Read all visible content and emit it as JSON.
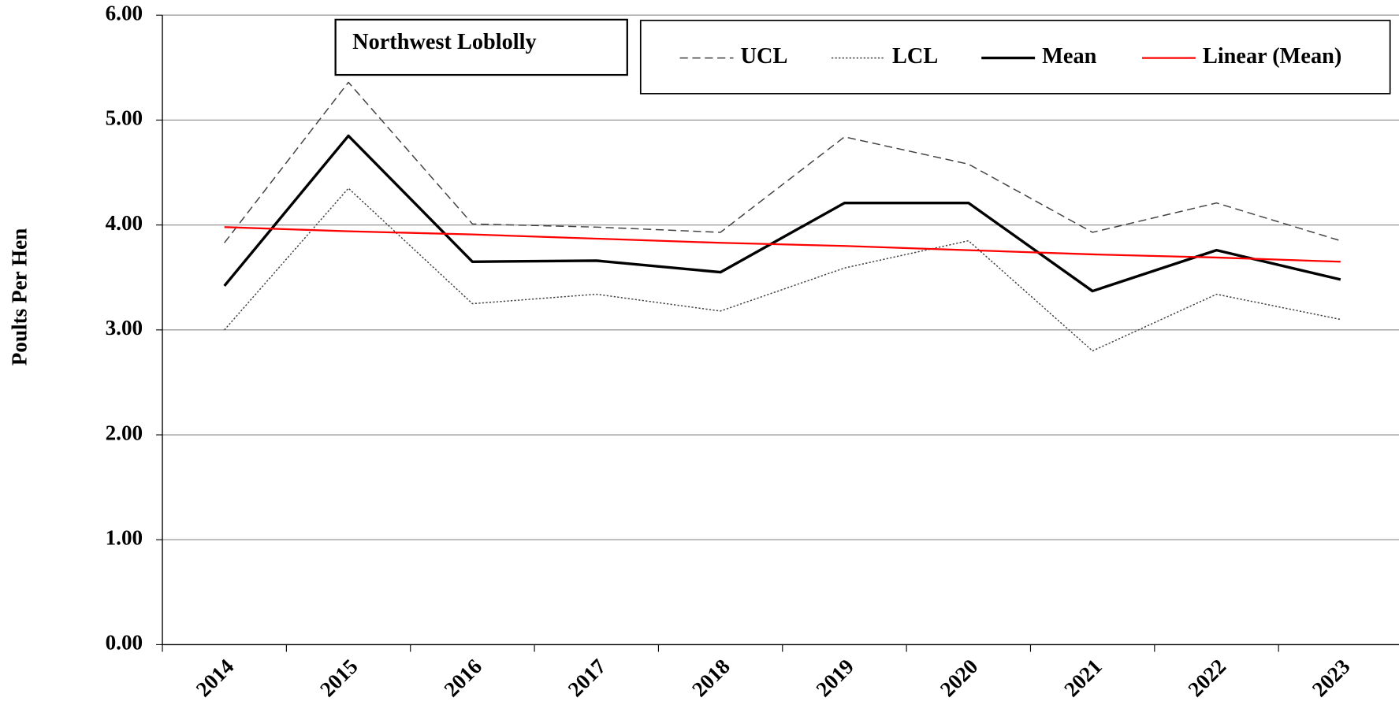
{
  "chart_data": {
    "type": "line",
    "title": "Northwest Loblolly",
    "y_label": "Poults Per Hen",
    "categories": [
      "2014",
      "2015",
      "2016",
      "2017",
      "2018",
      "2019",
      "2020",
      "2021",
      "2022",
      "2023"
    ],
    "ylim": [
      0,
      6
    ],
    "yticks": [
      {
        "value": 0,
        "label": "0.00"
      },
      {
        "value": 1,
        "label": "1.00"
      },
      {
        "value": 2,
        "label": "2.00"
      },
      {
        "value": 3,
        "label": "3.00"
      },
      {
        "value": 4,
        "label": "4.00"
      },
      {
        "value": 5,
        "label": "5.00"
      },
      {
        "value": 6,
        "label": "6.00"
      }
    ],
    "grid": true,
    "legend": "top-right",
    "series": [
      {
        "name": "UCL",
        "color": "#404040",
        "dash": "dashed",
        "width": 1.3,
        "values": [
          3.83,
          5.36,
          4.01,
          3.98,
          3.93,
          4.84,
          4.58,
          3.93,
          4.21,
          3.85
        ]
      },
      {
        "name": "LCL",
        "color": "#404040",
        "dash": "dotted",
        "width": 1.3,
        "values": [
          3.0,
          4.35,
          3.25,
          3.34,
          3.18,
          3.59,
          3.85,
          2.8,
          3.34,
          3.1
        ]
      },
      {
        "name": "Mean",
        "color": "#000000",
        "dash": "solid",
        "width": 3,
        "values": [
          3.42,
          4.85,
          3.65,
          3.66,
          3.55,
          4.21,
          4.21,
          3.37,
          3.76,
          3.48
        ]
      },
      {
        "name": "Linear (Mean)",
        "color": "#ff0000",
        "dash": "solid",
        "width": 2,
        "values": [
          3.98,
          3.94,
          3.91,
          3.87,
          3.83,
          3.8,
          3.76,
          3.72,
          3.69,
          3.65
        ]
      }
    ]
  }
}
